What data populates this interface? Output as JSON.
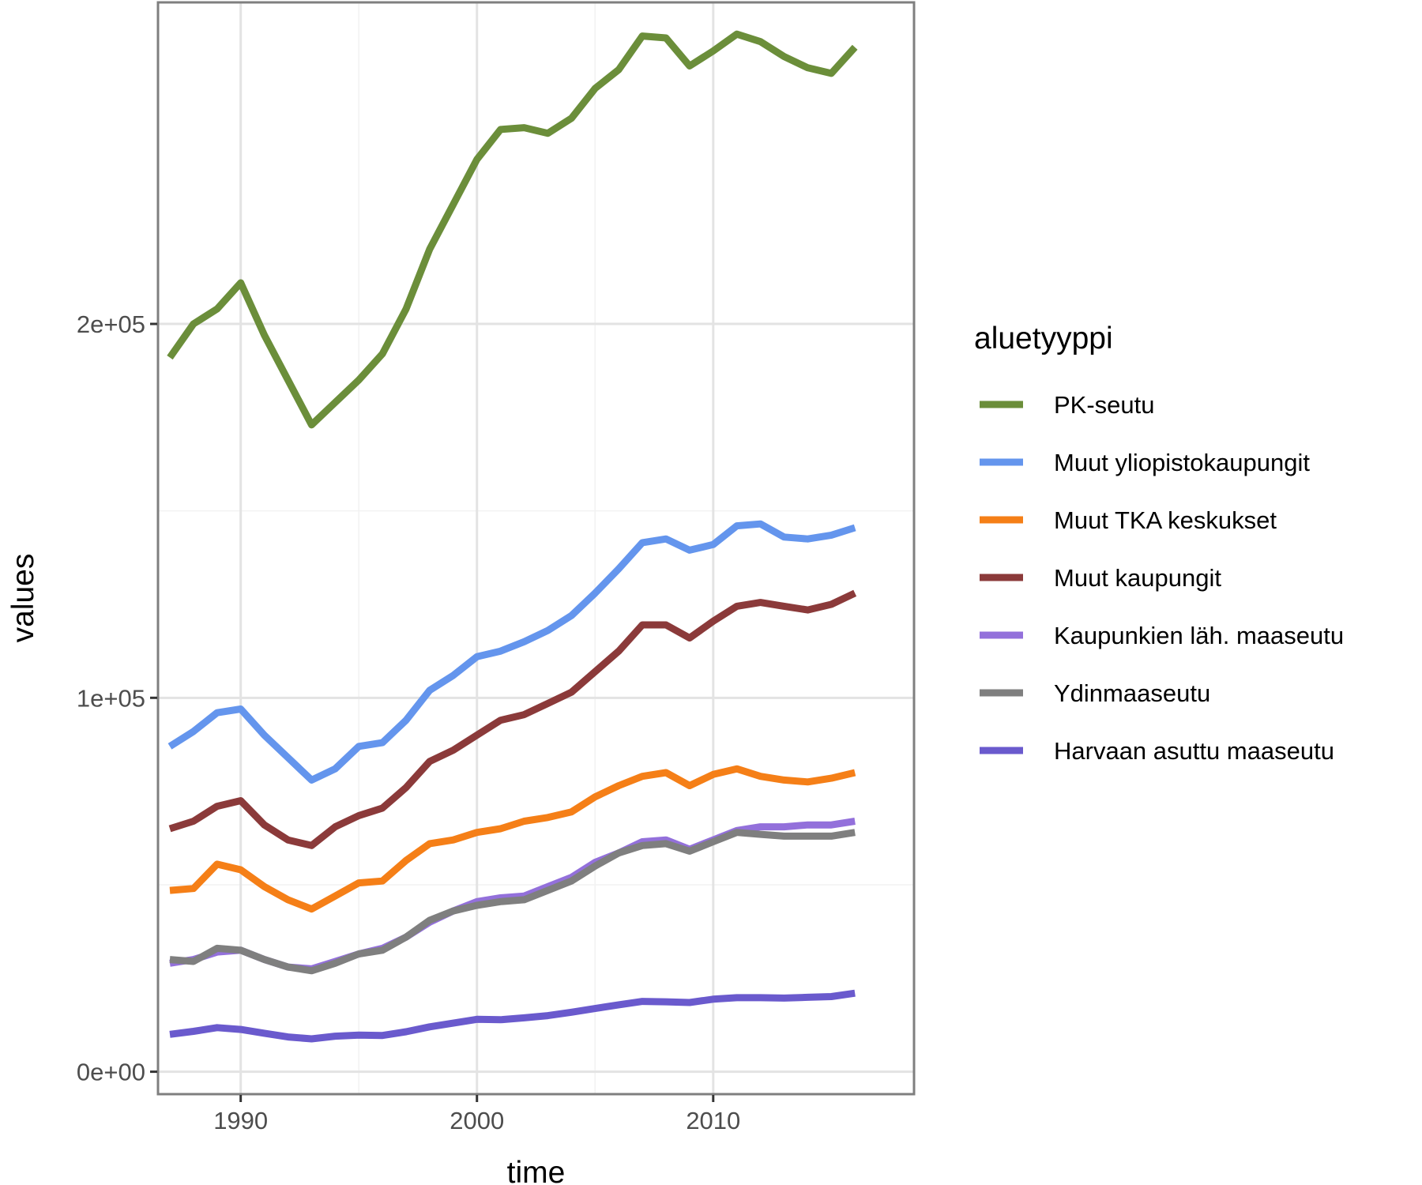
{
  "chart_data": {
    "type": "line",
    "title": "",
    "xlabel": "time",
    "ylabel": "values",
    "xlim": [
      1986.5,
      2018.5
    ],
    "ylim": [
      -6000,
      286000
    ],
    "x_ticks": [
      1990,
      2000,
      2010
    ],
    "y_ticks": [
      {
        "value": 0,
        "label": "0e+00"
      },
      {
        "value": 100000,
        "label": "1e+05"
      },
      {
        "value": 200000,
        "label": "2e+05"
      }
    ],
    "grid": true,
    "legend": {
      "title": "aluetyyppi",
      "position": "right"
    },
    "x": [
      1987,
      1988,
      1989,
      1990,
      1991,
      1992,
      1993,
      1994,
      1995,
      1996,
      1997,
      1998,
      1999,
      2000,
      2001,
      2002,
      2003,
      2004,
      2005,
      2006,
      2007,
      2008,
      2009,
      2010,
      2011,
      2012,
      2013,
      2014,
      2015,
      2016
    ],
    "series": [
      {
        "name": "PK-seutu",
        "color": "#6b8e3a",
        "values": [
          191000,
          200000,
          204000,
          211000,
          197000,
          185000,
          173000,
          179000,
          185000,
          192000,
          204000,
          220000,
          232000,
          244000,
          252000,
          252500,
          251000,
          255000,
          263000,
          268000,
          277000,
          276500,
          269000,
          273000,
          277500,
          275500,
          271500,
          268500,
          267000,
          274000
        ]
      },
      {
        "name": "Muut yliopistokaupungit",
        "color": "#6495ed",
        "values": [
          87000,
          91000,
          96000,
          97000,
          90000,
          84000,
          78000,
          81000,
          87000,
          88000,
          94000,
          102000,
          106000,
          111000,
          112500,
          115000,
          118000,
          122000,
          128000,
          134500,
          141500,
          142500,
          139500,
          141000,
          146000,
          146500,
          143000,
          142500,
          143500,
          145500
        ]
      },
      {
        "name": "Muut TKA keskukset",
        "color": "#f57f17",
        "values": [
          48500,
          49000,
          55500,
          54000,
          49500,
          46000,
          43500,
          47000,
          50500,
          51000,
          56500,
          61000,
          62000,
          64000,
          65000,
          67000,
          68000,
          69500,
          73500,
          76500,
          79000,
          80000,
          76500,
          79500,
          81000,
          79000,
          78000,
          77500,
          78500,
          80000
        ]
      },
      {
        "name": "Muut kaupungit",
        "color": "#8b3a3a",
        "values": [
          65000,
          67000,
          71000,
          72500,
          66000,
          62000,
          60500,
          65500,
          68500,
          70500,
          76000,
          83000,
          86000,
          90000,
          94000,
          95500,
          98500,
          101500,
          107000,
          112500,
          119500,
          119500,
          116000,
          120500,
          124500,
          125500,
          124500,
          123500,
          125000,
          128000
        ]
      },
      {
        "name": "Kaupunkien läh. maaseutu",
        "color": "#9370db",
        "values": [
          29000,
          30000,
          32000,
          32500,
          30000,
          28000,
          27500,
          29500,
          31500,
          33000,
          36000,
          40000,
          43000,
          45500,
          46500,
          47000,
          49500,
          52000,
          56000,
          58500,
          61500,
          62000,
          59500,
          62000,
          64500,
          65500,
          65500,
          66000,
          66000,
          67000
        ]
      },
      {
        "name": "Ydinmaaseutu",
        "color": "#7f7f7f",
        "values": [
          30000,
          29500,
          33000,
          32500,
          30000,
          28000,
          27000,
          29000,
          31500,
          32500,
          36000,
          40500,
          43000,
          44500,
          45500,
          46000,
          48500,
          51000,
          55000,
          58500,
          60500,
          61000,
          59000,
          61500,
          64000,
          63500,
          63000,
          63000,
          63000,
          64000
        ]
      },
      {
        "name": "Harvaan asuttu maaseutu",
        "color": "#6a5acd",
        "values": [
          10000,
          10800,
          11800,
          11300,
          10300,
          9300,
          8800,
          9500,
          9800,
          9700,
          10700,
          12000,
          13000,
          14000,
          13900,
          14400,
          15000,
          15900,
          16900,
          17900,
          18800,
          18700,
          18500,
          19400,
          19800,
          19800,
          19700,
          19900,
          20100,
          21000
        ]
      }
    ]
  }
}
